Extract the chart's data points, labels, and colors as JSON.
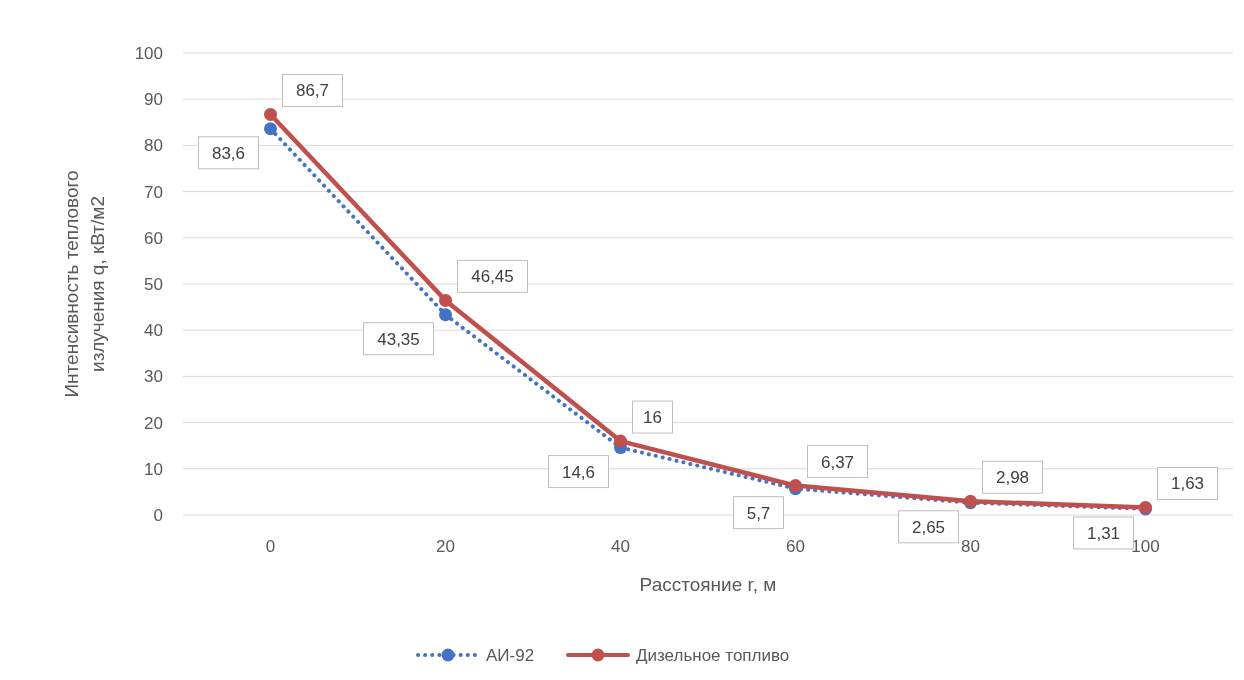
{
  "chart_data": {
    "type": "line",
    "xlabel": "Расстояние r, м",
    "ylabel": "Интенсивность теплового излучения q, кВт/м2",
    "categories": [
      "0",
      "20",
      "40",
      "60",
      "80",
      "100"
    ],
    "series": [
      {
        "name": "АИ-92",
        "color": "#4472c4",
        "line_style": "dotted",
        "values": [
          83.6,
          43.35,
          14.6,
          5.7,
          2.65,
          1.31
        ],
        "value_labels": [
          "83,6",
          "43,35",
          "14,6",
          "5,7",
          "2,65",
          "1,31"
        ]
      },
      {
        "name": "Дизельное топливо",
        "color": "#c0504d",
        "line_style": "solid",
        "values": [
          86.7,
          46.45,
          16,
          6.37,
          2.98,
          1.63
        ],
        "value_labels": [
          "86,7",
          "46,45",
          "16",
          "6,37",
          "2,98",
          "1,63"
        ]
      }
    ],
    "ylim": [
      0,
      100
    ],
    "yticks": [
      0,
      10,
      20,
      30,
      40,
      50,
      60,
      70,
      80,
      90,
      100
    ],
    "grid": "y",
    "legend": "bottom",
    "marker": "circle"
  }
}
